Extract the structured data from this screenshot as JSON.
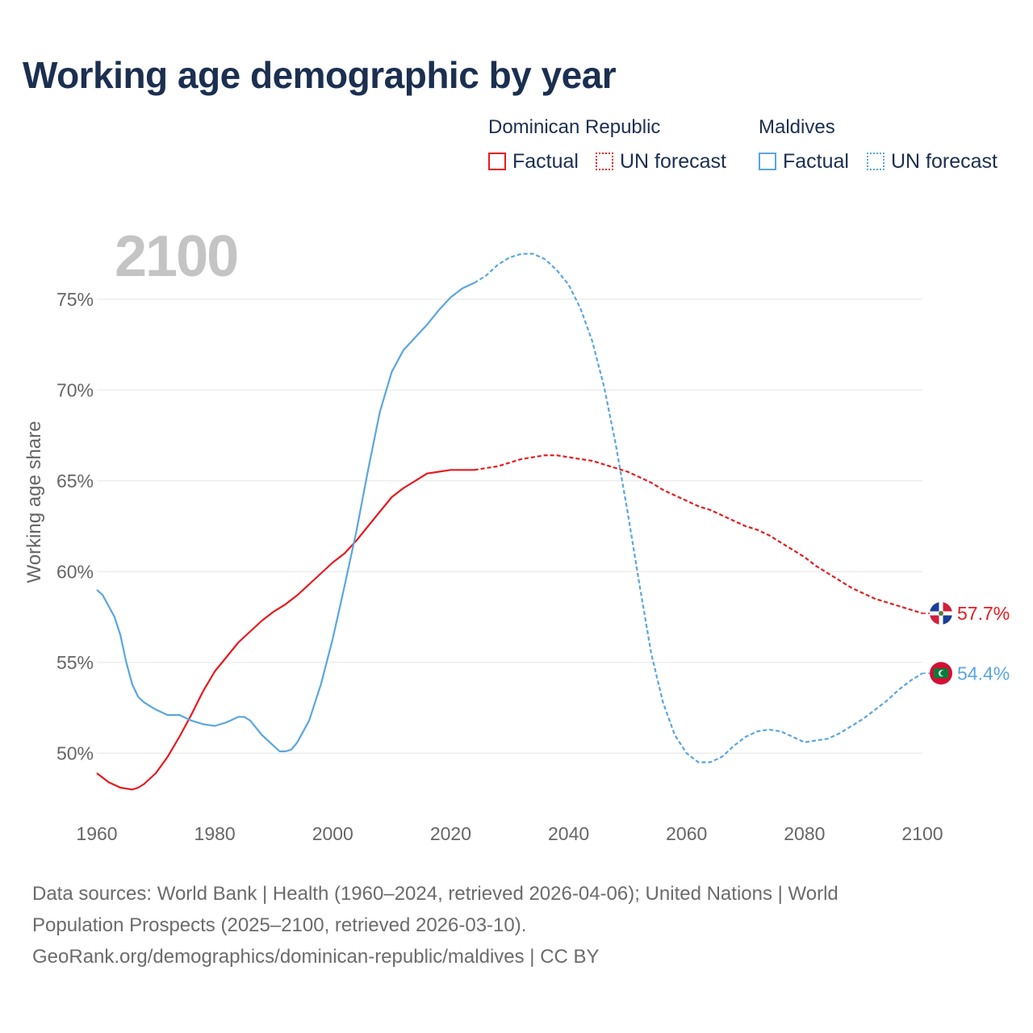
{
  "title": "Working age demographic by year",
  "legend": {
    "groups": [
      {
        "name": "Dominican Republic",
        "color": "#e8191f",
        "items": [
          {
            "label": "Factual",
            "style": "solid"
          },
          {
            "label": "UN forecast",
            "style": "dotted"
          }
        ]
      },
      {
        "name": "Maldives",
        "color": "#5aa6e0",
        "items": [
          {
            "label": "Factual",
            "style": "solid"
          },
          {
            "label": "UN forecast",
            "style": "dotted"
          }
        ]
      }
    ]
  },
  "sources": {
    "line1": "Data sources: World Bank | Health (1960–2024, retrieved 2026-04-06); United Nations | World",
    "line2": "Population Prospects (2025–2100, retrieved 2026-03-10).",
    "line3": "GeoRank.org/demographics/dominican-republic/maldives | CC BY"
  },
  "chart_data": {
    "type": "line",
    "title": "Working age demographic by year",
    "year_label": "2100",
    "xlabel": "",
    "ylabel": "Working age share",
    "xlim": [
      1960,
      2100
    ],
    "ylim": [
      46.5,
      78.5
    ],
    "xticks": [
      1960,
      1980,
      2000,
      2020,
      2040,
      2060,
      2080,
      2100
    ],
    "yticks": [
      50,
      55,
      60,
      65,
      70,
      75
    ],
    "ytick_suffix": "%",
    "grid": true,
    "forecast_start": 2024,
    "series": [
      {
        "name": "Dominican Republic",
        "color": "#e8191f",
        "end_label": "57.7%",
        "x": [
          1960,
          1962,
          1964,
          1966,
          1967,
          1968,
          1970,
          1972,
          1974,
          1976,
          1978,
          1980,
          1982,
          1984,
          1986,
          1988,
          1990,
          1992,
          1994,
          1996,
          1998,
          2000,
          2002,
          2004,
          2006,
          2008,
          2010,
          2012,
          2014,
          2016,
          2018,
          2020,
          2022,
          2024,
          2026,
          2028,
          2030,
          2032,
          2034,
          2036,
          2038,
          2040,
          2042,
          2044,
          2046,
          2048,
          2050,
          2052,
          2054,
          2056,
          2058,
          2060,
          2062,
          2064,
          2066,
          2068,
          2070,
          2072,
          2074,
          2076,
          2078,
          2080,
          2082,
          2084,
          2086,
          2088,
          2090,
          2092,
          2094,
          2096,
          2098,
          2100
        ],
        "values": [
          48.9,
          48.4,
          48.1,
          48.0,
          48.1,
          48.3,
          48.9,
          49.8,
          50.9,
          52.1,
          53.4,
          54.5,
          55.3,
          56.1,
          56.7,
          57.3,
          57.8,
          58.2,
          58.7,
          59.3,
          59.9,
          60.5,
          61.0,
          61.7,
          62.5,
          63.3,
          64.1,
          64.6,
          65.0,
          65.4,
          65.5,
          65.6,
          65.6,
          65.6,
          65.7,
          65.8,
          66.0,
          66.2,
          66.3,
          66.4,
          66.4,
          66.3,
          66.2,
          66.1,
          65.9,
          65.7,
          65.5,
          65.2,
          64.9,
          64.5,
          64.2,
          63.9,
          63.6,
          63.4,
          63.1,
          62.8,
          62.5,
          62.3,
          62.0,
          61.6,
          61.2,
          60.8,
          60.3,
          59.9,
          59.5,
          59.1,
          58.8,
          58.5,
          58.3,
          58.1,
          57.9,
          57.7
        ]
      },
      {
        "name": "Maldives",
        "color": "#5aa6e0",
        "end_label": "54.4%",
        "x": [
          1960,
          1961,
          1962,
          1963,
          1964,
          1965,
          1966,
          1967,
          1968,
          1970,
          1972,
          1974,
          1976,
          1978,
          1980,
          1982,
          1984,
          1985,
          1986,
          1988,
          1990,
          1991,
          1992,
          1993,
          1994,
          1996,
          1998,
          2000,
          2002,
          2004,
          2006,
          2008,
          2010,
          2012,
          2014,
          2016,
          2018,
          2020,
          2022,
          2024,
          2026,
          2028,
          2030,
          2032,
          2034,
          2036,
          2038,
          2040,
          2042,
          2044,
          2046,
          2048,
          2050,
          2052,
          2054,
          2056,
          2058,
          2060,
          2062,
          2064,
          2066,
          2068,
          2070,
          2072,
          2074,
          2076,
          2078,
          2080,
          2082,
          2084,
          2086,
          2088,
          2090,
          2092,
          2094,
          2096,
          2098,
          2100
        ],
        "values": [
          59.0,
          58.7,
          58.1,
          57.5,
          56.5,
          55.0,
          53.8,
          53.1,
          52.8,
          52.4,
          52.1,
          52.1,
          51.8,
          51.6,
          51.5,
          51.7,
          52.0,
          52.0,
          51.8,
          51.0,
          50.4,
          50.1,
          50.1,
          50.2,
          50.6,
          51.8,
          53.8,
          56.3,
          59.2,
          62.2,
          65.6,
          68.8,
          71.0,
          72.2,
          72.9,
          73.6,
          74.4,
          75.1,
          75.6,
          75.9,
          76.3,
          76.9,
          77.3,
          77.5,
          77.5,
          77.2,
          76.6,
          75.8,
          74.5,
          72.7,
          70.2,
          67.0,
          63.3,
          59.3,
          55.5,
          52.8,
          51.0,
          50.0,
          49.5,
          49.5,
          49.8,
          50.4,
          50.9,
          51.2,
          51.3,
          51.2,
          50.9,
          50.6,
          50.7,
          50.8,
          51.1,
          51.5,
          51.9,
          52.4,
          52.9,
          53.5,
          54.0,
          54.4
        ]
      }
    ]
  }
}
